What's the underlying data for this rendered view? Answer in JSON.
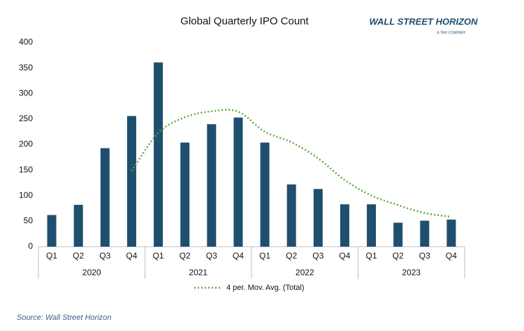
{
  "chart_data": {
    "type": "bar",
    "title": "Global Quarterly IPO Count",
    "categories": [
      "Q1",
      "Q2",
      "Q3",
      "Q4",
      "Q1",
      "Q2",
      "Q3",
      "Q4",
      "Q1",
      "Q2",
      "Q3",
      "Q4",
      "Q1",
      "Q2",
      "Q3",
      "Q4"
    ],
    "groups": [
      "2020",
      "2021",
      "2022",
      "2023"
    ],
    "values": [
      62,
      82,
      193,
      256,
      361,
      204,
      240,
      253,
      204,
      122,
      113,
      83,
      83,
      47,
      51,
      53
    ],
    "color": "#1f4e6e",
    "trendline": {
      "name": "4 per. Mov. Avg. (Total)",
      "color": "#5aaa3c",
      "values": [
        null,
        null,
        null,
        148.25,
        223,
        253.5,
        265.25,
        264.5,
        225.25,
        204.75,
        173,
        130.5,
        100.25,
        81.5,
        66,
        58.5
      ]
    },
    "ylim": [
      0,
      400
    ],
    "yticks": [
      0,
      50,
      100,
      150,
      200,
      250,
      300,
      350,
      400
    ],
    "grid": false,
    "legend": "bottom"
  },
  "logo": {
    "name": "WALL STREET HORIZON",
    "tagline": "A TMX COMPANY"
  },
  "source": "Source: Wall Street Horizon"
}
